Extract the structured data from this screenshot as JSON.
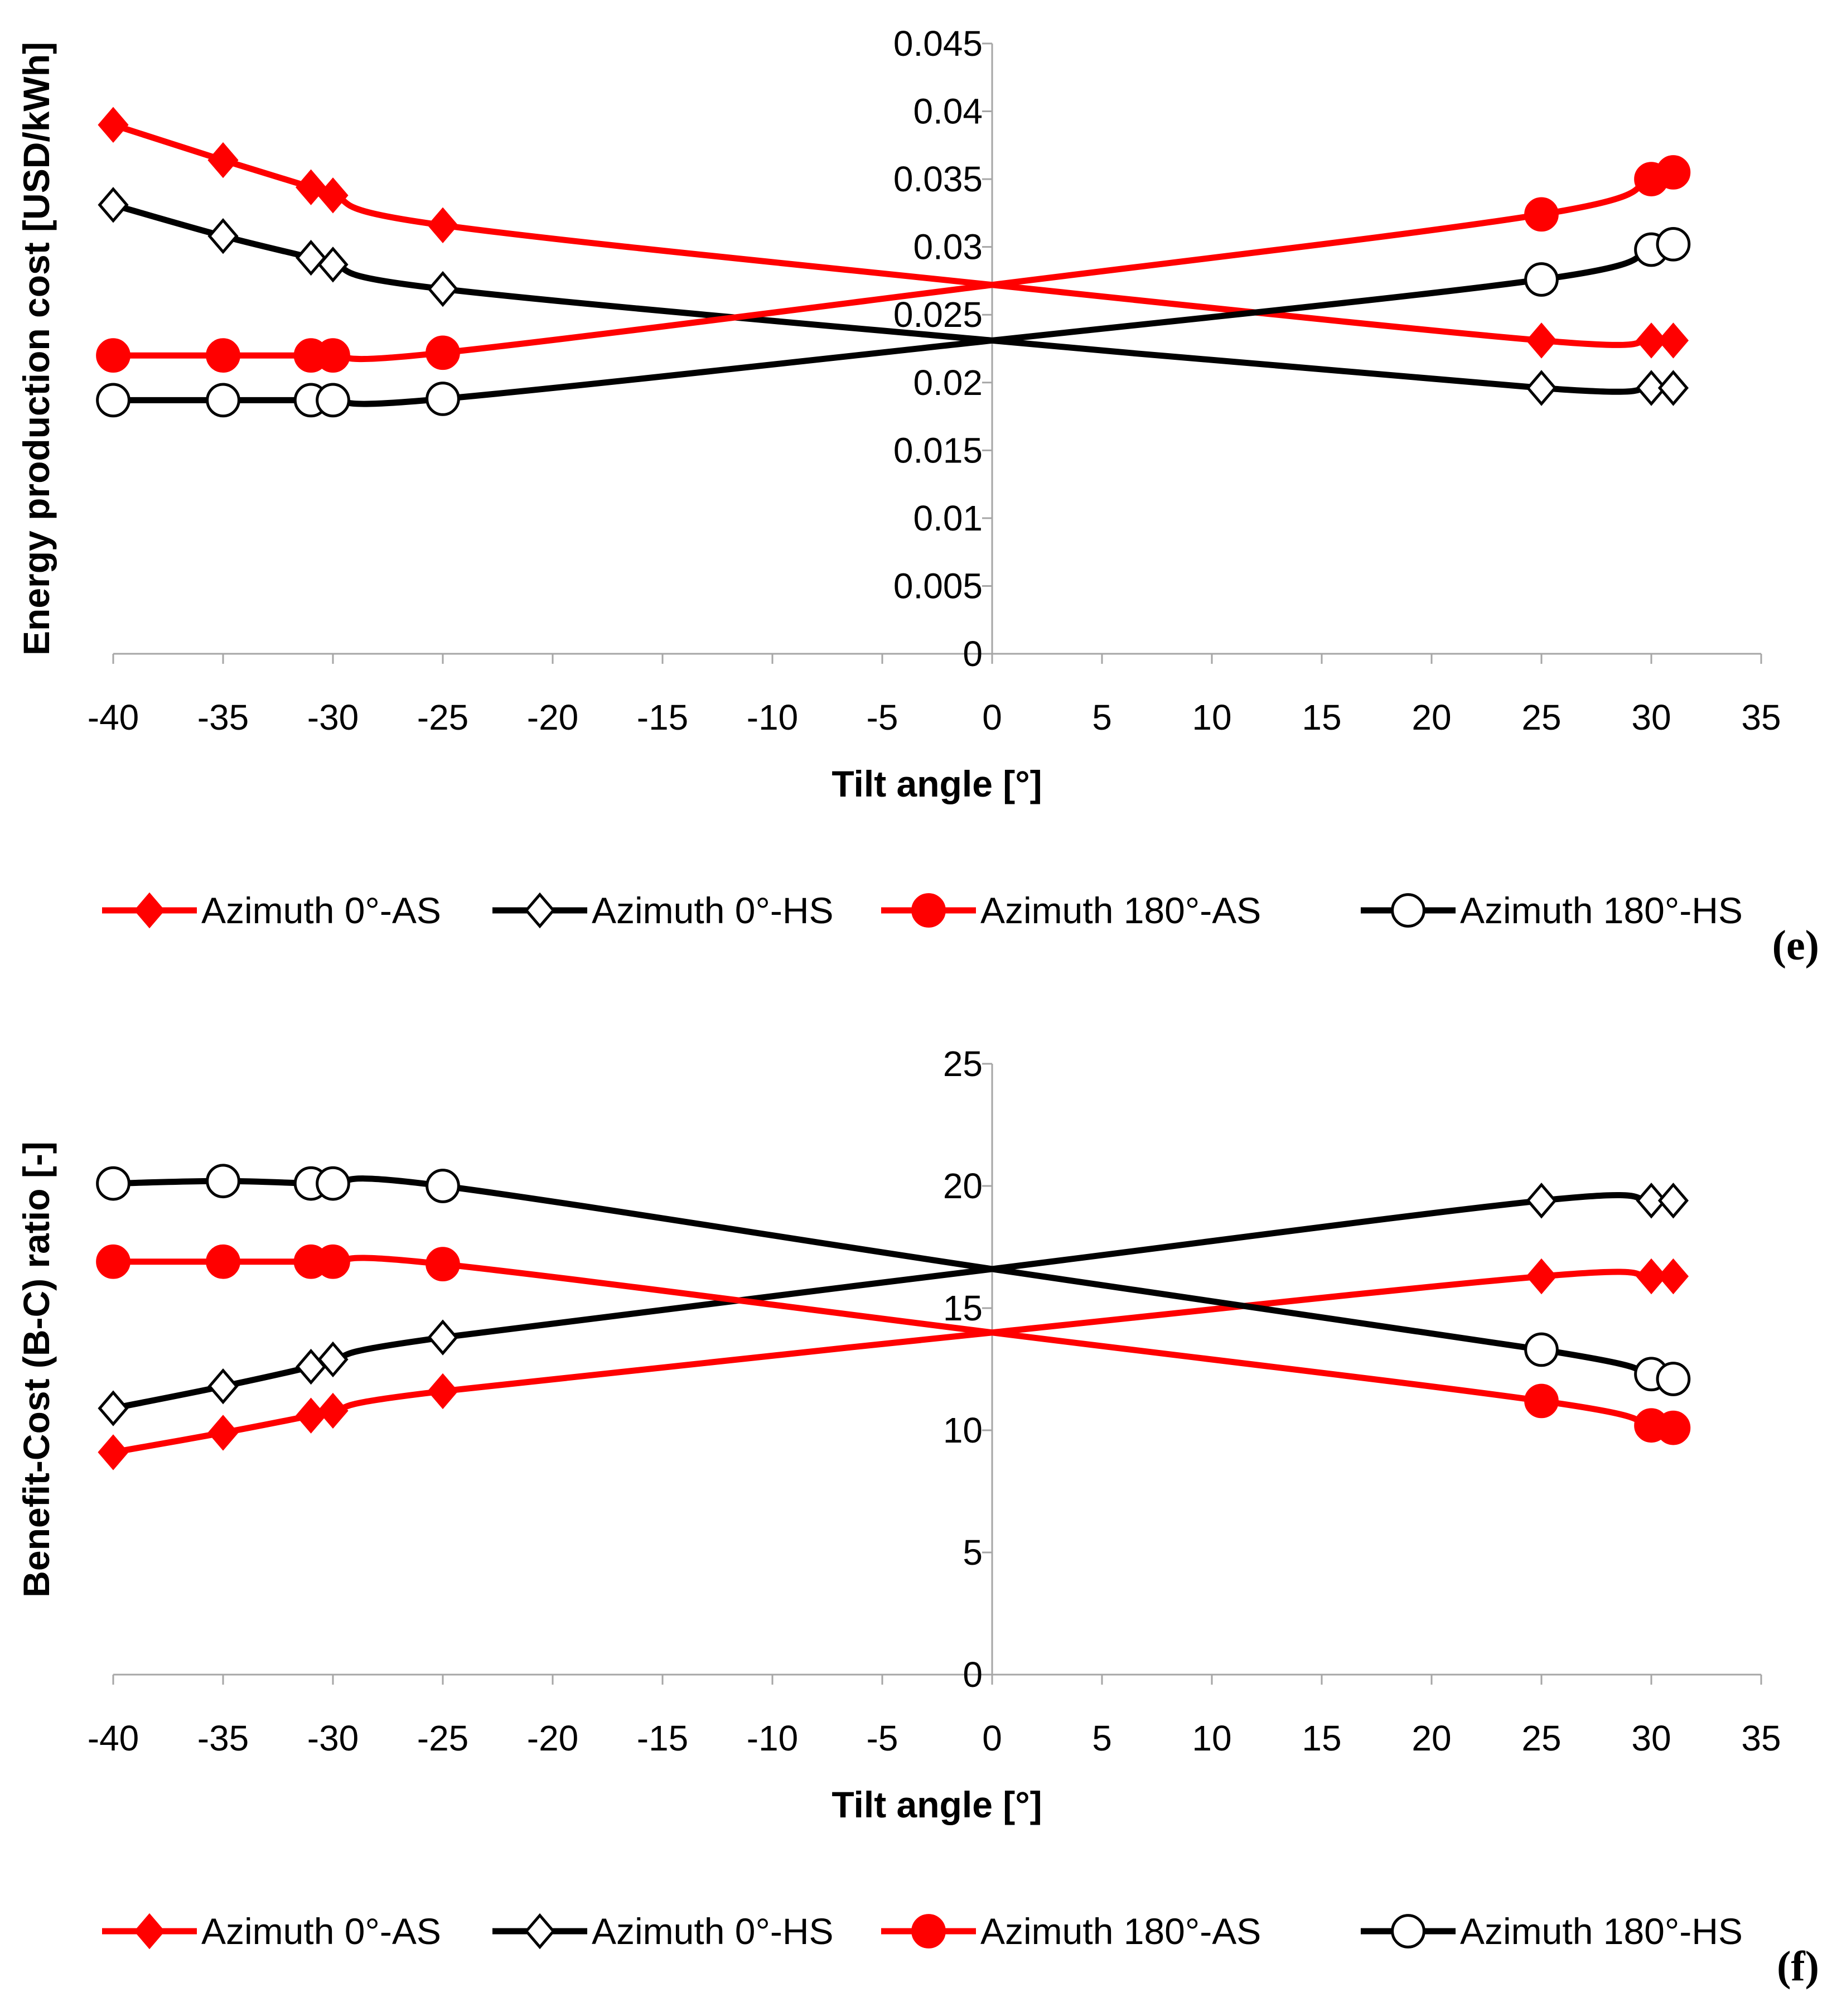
{
  "panels": [
    {
      "id": "e",
      "panel_label": "(e)",
      "legend": [
        {
          "label": "Azimuth 0°-AS"
        },
        {
          "label": "Azimuth 0°-HS"
        },
        {
          "label": "Azimuth 180°-AS"
        },
        {
          "label": "Azimuth 180°-HS"
        }
      ]
    },
    {
      "id": "f",
      "panel_label": "(f)",
      "legend": [
        {
          "label": "Azimuth 0°-AS"
        },
        {
          "label": "Azimuth 0°-HS"
        },
        {
          "label": "Azimuth 180°-AS"
        },
        {
          "label": "Azimuth 180°-HS"
        }
      ]
    }
  ],
  "chart_data": [
    {
      "type": "line",
      "panel": "(e)",
      "xlabel": "Tilt angle [°]",
      "ylabel": "Energy production cost [USD/kWh]",
      "xlim": [
        -40,
        35
      ],
      "ylim": [
        0,
        0.045
      ],
      "x_ticks": [
        "-40",
        "-35",
        "-30",
        "-25",
        "-20",
        "-15",
        "-10",
        "-5",
        "0",
        "5",
        "10",
        "15",
        "20",
        "25",
        "30",
        "35"
      ],
      "y_ticks": [
        "0",
        "0.005",
        "0.01",
        "0.015",
        "0.02",
        "0.025",
        "0.03",
        "0.035",
        "0.04",
        "0.045"
      ],
      "grid": false,
      "legend_position": "bottom",
      "series": [
        {
          "name": "Azimuth 0°-AS",
          "color": "#ff0000",
          "marker": "diamond-filled",
          "points": [
            [
              -40,
              0.039
            ],
            [
              -35,
              0.0364
            ],
            [
              -31,
              0.0344
            ],
            [
              -30,
              0.0338
            ],
            [
              -25,
              0.0316
            ],
            [
              0,
              0.0272
            ],
            [
              25,
              0.0231
            ],
            [
              30,
              0.0231
            ],
            [
              31,
              0.0231
            ]
          ]
        },
        {
          "name": "Azimuth 0°-HS",
          "color": "#000000",
          "marker": "diamond-open",
          "points": [
            [
              -40,
              0.0331
            ],
            [
              -35,
              0.0308
            ],
            [
              -31,
              0.0292
            ],
            [
              -30,
              0.0287
            ],
            [
              -25,
              0.0269
            ],
            [
              0,
              0.0231
            ],
            [
              25,
              0.0196
            ],
            [
              30,
              0.0196
            ],
            [
              31,
              0.0196
            ]
          ]
        },
        {
          "name": "Azimuth 180°-AS",
          "color": "#ff0000",
          "marker": "circle-filled",
          "points": [
            [
              -40,
              0.022
            ],
            [
              -35,
              0.022
            ],
            [
              -31,
              0.022
            ],
            [
              -30,
              0.022
            ],
            [
              -25,
              0.0222
            ],
            [
              0,
              0.0272
            ],
            [
              25,
              0.0324
            ],
            [
              30,
              0.035
            ],
            [
              31,
              0.0355
            ]
          ]
        },
        {
          "name": "Azimuth 180°-HS",
          "color": "#000000",
          "marker": "circle-open",
          "points": [
            [
              -40,
              0.0187
            ],
            [
              -35,
              0.0187
            ],
            [
              -31,
              0.0187
            ],
            [
              -30,
              0.0187
            ],
            [
              -25,
              0.0188
            ],
            [
              0,
              0.0231
            ],
            [
              25,
              0.0276
            ],
            [
              30,
              0.0298
            ],
            [
              31,
              0.0302
            ]
          ]
        }
      ]
    },
    {
      "type": "line",
      "panel": "(f)",
      "xlabel": "Tilt angle [°]",
      "ylabel": "Benefit-Cost (B-C) ratio [-]",
      "xlim": [
        -40,
        35
      ],
      "ylim": [
        0,
        25
      ],
      "x_ticks": [
        "-40",
        "-35",
        "-30",
        "-25",
        "-20",
        "-15",
        "-10",
        "-5",
        "0",
        "5",
        "10",
        "15",
        "20",
        "25",
        "30",
        "35"
      ],
      "y_ticks": [
        "0",
        "5",
        "10",
        "15",
        "20",
        "25"
      ],
      "grid": false,
      "legend_position": "bottom",
      "series": [
        {
          "name": "Azimuth 0°-AS",
          "color": "#ff0000",
          "marker": "diamond-filled",
          "points": [
            [
              -40,
              9.1
            ],
            [
              -35,
              9.9
            ],
            [
              -31,
              10.6
            ],
            [
              -30,
              10.8
            ],
            [
              -25,
              11.6
            ],
            [
              0,
              14.0
            ],
            [
              25,
              16.3
            ],
            [
              30,
              16.3
            ],
            [
              31,
              16.3
            ]
          ]
        },
        {
          "name": "Azimuth 0°-HS",
          "color": "#000000",
          "marker": "diamond-open",
          "points": [
            [
              -40,
              10.9
            ],
            [
              -35,
              11.8
            ],
            [
              -31,
              12.6
            ],
            [
              -30,
              12.9
            ],
            [
              -25,
              13.8
            ],
            [
              0,
              16.6
            ],
            [
              25,
              19.4
            ],
            [
              30,
              19.4
            ],
            [
              31,
              19.4
            ]
          ]
        },
        {
          "name": "Azimuth 180°-AS",
          "color": "#ff0000",
          "marker": "circle-filled",
          "points": [
            [
              -40,
              16.9
            ],
            [
              -35,
              16.9
            ],
            [
              -31,
              16.9
            ],
            [
              -30,
              16.9
            ],
            [
              -25,
              16.8
            ],
            [
              0,
              14.0
            ],
            [
              25,
              11.2
            ],
            [
              30,
              10.2
            ],
            [
              31,
              10.1
            ]
          ]
        },
        {
          "name": "Azimuth 180°-HS",
          "color": "#000000",
          "marker": "circle-open",
          "points": [
            [
              -40,
              20.1
            ],
            [
              -35,
              20.2
            ],
            [
              -31,
              20.1
            ],
            [
              -30,
              20.1
            ],
            [
              -25,
              20.0
            ],
            [
              0,
              16.6
            ],
            [
              25,
              13.3
            ],
            [
              30,
              12.3
            ],
            [
              31,
              12.1
            ]
          ]
        }
      ]
    }
  ]
}
